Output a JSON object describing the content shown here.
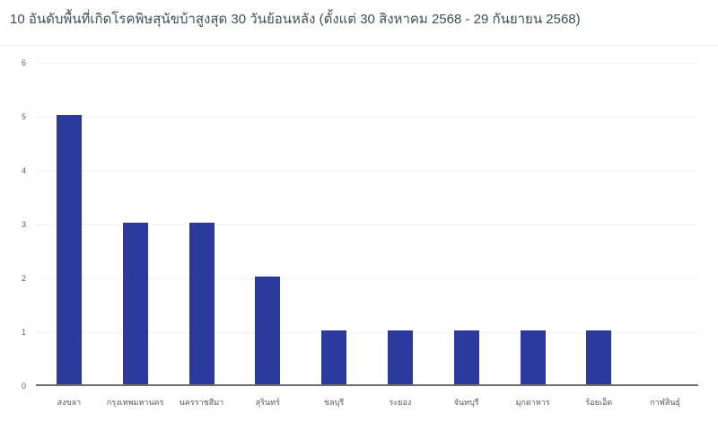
{
  "header": {
    "title": "10 อันดับพื้นที่เกิดโรคพิษสุนัขบ้าสูงสุด 30 วันย้อนหลัง (ตั้งแต่ 30 สิงหาคม 2568 - 29 กันยายน 2568)"
  },
  "chart_data": {
    "type": "bar",
    "title": "10 อันดับพื้นที่เกิดโรคพิษสุนัขบ้าสูงสุด 30 วันย้อนหลัง (ตั้งแต่ 30 สิงหาคม 2568 - 29 กันยายน 2568)",
    "categories": [
      "สงขลา",
      "กรุงเทพมหานคร",
      "นครราชสีมา",
      "สุรินทร์",
      "ชลบุรี",
      "ระยอง",
      "จันทบุรี",
      "มุกดาหาร",
      "ร้อยเอ็ด",
      "กาฬสินธุ์"
    ],
    "values": [
      5,
      3,
      3,
      2,
      1,
      1,
      1,
      1,
      1,
      0
    ],
    "xlabel": "",
    "ylabel": "",
    "ylim": [
      0,
      6
    ],
    "yticks": [
      0,
      1,
      2,
      3,
      4,
      5,
      6
    ],
    "grid": true,
    "legend": false,
    "bar_color": "#2b3a9c",
    "gridline_color": "#f2f2f2",
    "axis_line_color": "#6f6f6f",
    "tick_label_color": "#5a5a5a",
    "title_color": "#3e4e58"
  }
}
